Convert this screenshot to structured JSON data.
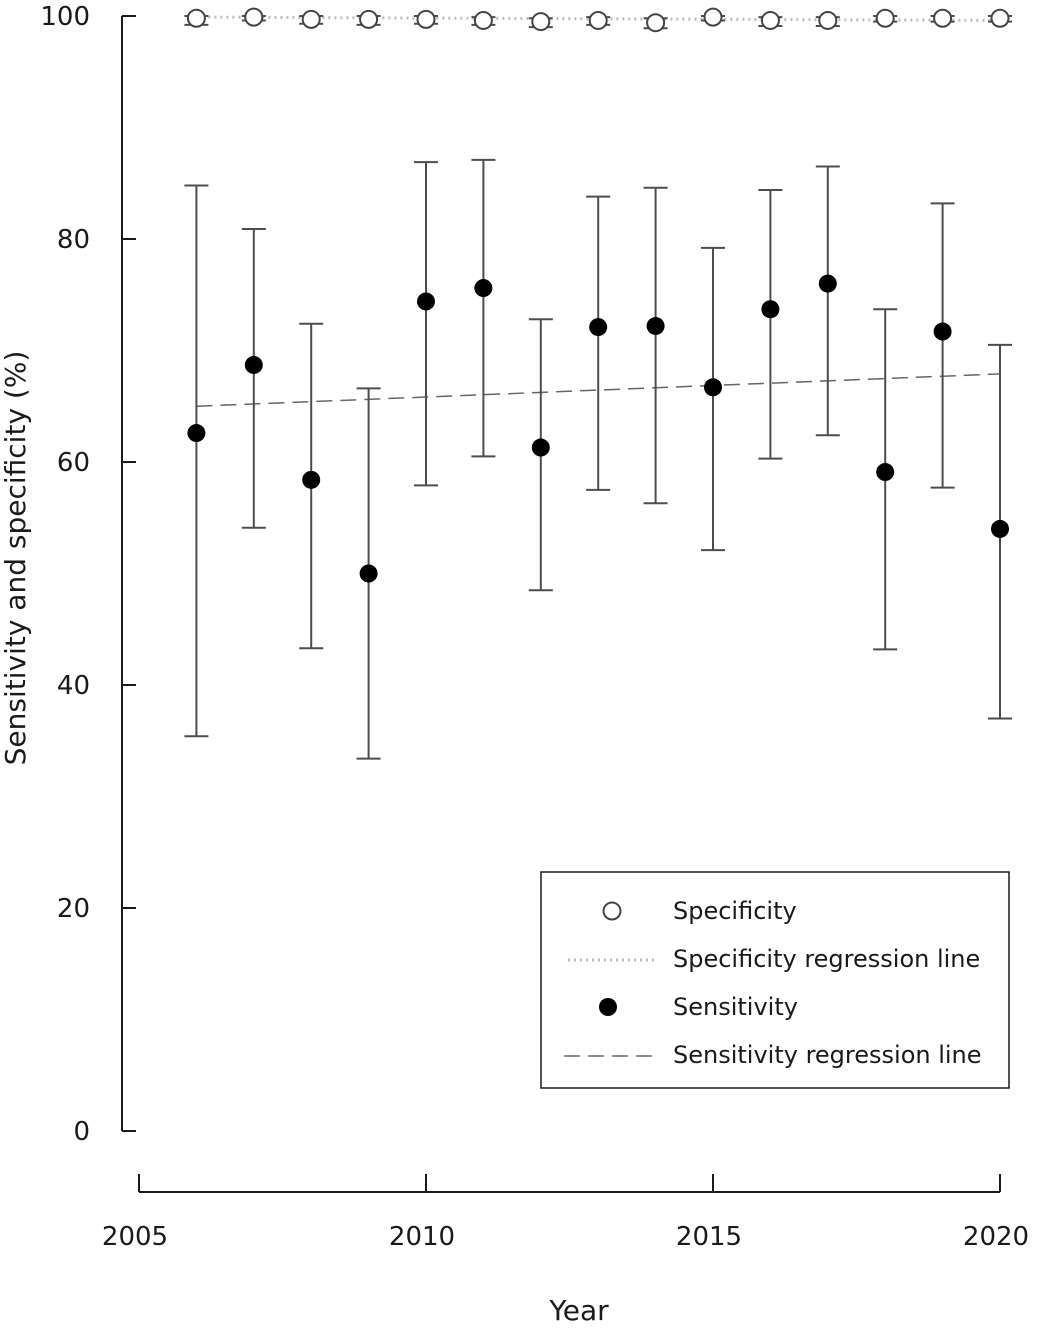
{
  "chart_data": {
    "type": "scatter",
    "title": "",
    "xlabel": "Year",
    "ylabel": "Sensitivity and specificity (%)",
    "xlim": [
      2005,
      2020
    ],
    "ylim": [
      0,
      100
    ],
    "xticks": [
      "2005",
      "2010",
      "2015",
      "2020"
    ],
    "yticks": [
      "0",
      "20",
      "40",
      "60",
      "80",
      "100"
    ],
    "legend_position": "bottom-right",
    "legend": [
      {
        "label": "Specificity",
        "style": "open-circle"
      },
      {
        "label": "Specificity regression line",
        "style": "dotted"
      },
      {
        "label": "Sensitivity",
        "style": "filled-circle"
      },
      {
        "label": "Sensitivity regression line",
        "style": "dashed"
      }
    ],
    "x": [
      2006,
      2007,
      2008,
      2009,
      2010,
      2011,
      2012,
      2013,
      2014,
      2015,
      2016,
      2017,
      2018,
      2019,
      2020
    ],
    "series": [
      {
        "name": "Specificity",
        "marker": "open-circle",
        "values": [
          99.8,
          99.9,
          99.7,
          99.7,
          99.7,
          99.6,
          99.5,
          99.6,
          99.4,
          99.9,
          99.6,
          99.6,
          99.8,
          99.8,
          99.8
        ],
        "ci_lower": [
          99.2,
          99.6,
          99.3,
          99.2,
          99.3,
          99.2,
          99.0,
          99.2,
          98.9,
          99.6,
          99.1,
          99.1,
          99.5,
          99.5,
          99.5
        ],
        "ci_upper": [
          100,
          100,
          100,
          100,
          100,
          99.9,
          99.8,
          99.9,
          99.8,
          100,
          99.9,
          99.9,
          100,
          100,
          100
        ]
      },
      {
        "name": "Sensitivity",
        "marker": "filled-circle",
        "values": [
          62.6,
          68.7,
          58.4,
          50.0,
          74.4,
          75.6,
          61.3,
          72.1,
          72.2,
          66.7,
          73.7,
          76.0,
          59.1,
          71.7,
          54.0
        ],
        "ci_lower": [
          35.4,
          54.1,
          43.3,
          33.4,
          57.9,
          60.5,
          48.5,
          57.5,
          56.3,
          52.1,
          60.3,
          62.4,
          43.2,
          57.7,
          37.0
        ],
        "ci_upper": [
          84.8,
          80.9,
          72.4,
          66.6,
          86.9,
          87.1,
          72.8,
          83.8,
          84.6,
          79.2,
          84.4,
          86.5,
          73.7,
          83.2,
          70.5
        ]
      }
    ],
    "regression_lines": [
      {
        "name": "Specificity regression line",
        "style": "dotted",
        "x": [
          2006,
          2020
        ],
        "y": [
          99.9,
          99.6
        ]
      },
      {
        "name": "Sensitivity regression line",
        "style": "dashed",
        "x": [
          2006,
          2020
        ],
        "y": [
          65.0,
          67.9
        ]
      }
    ]
  }
}
